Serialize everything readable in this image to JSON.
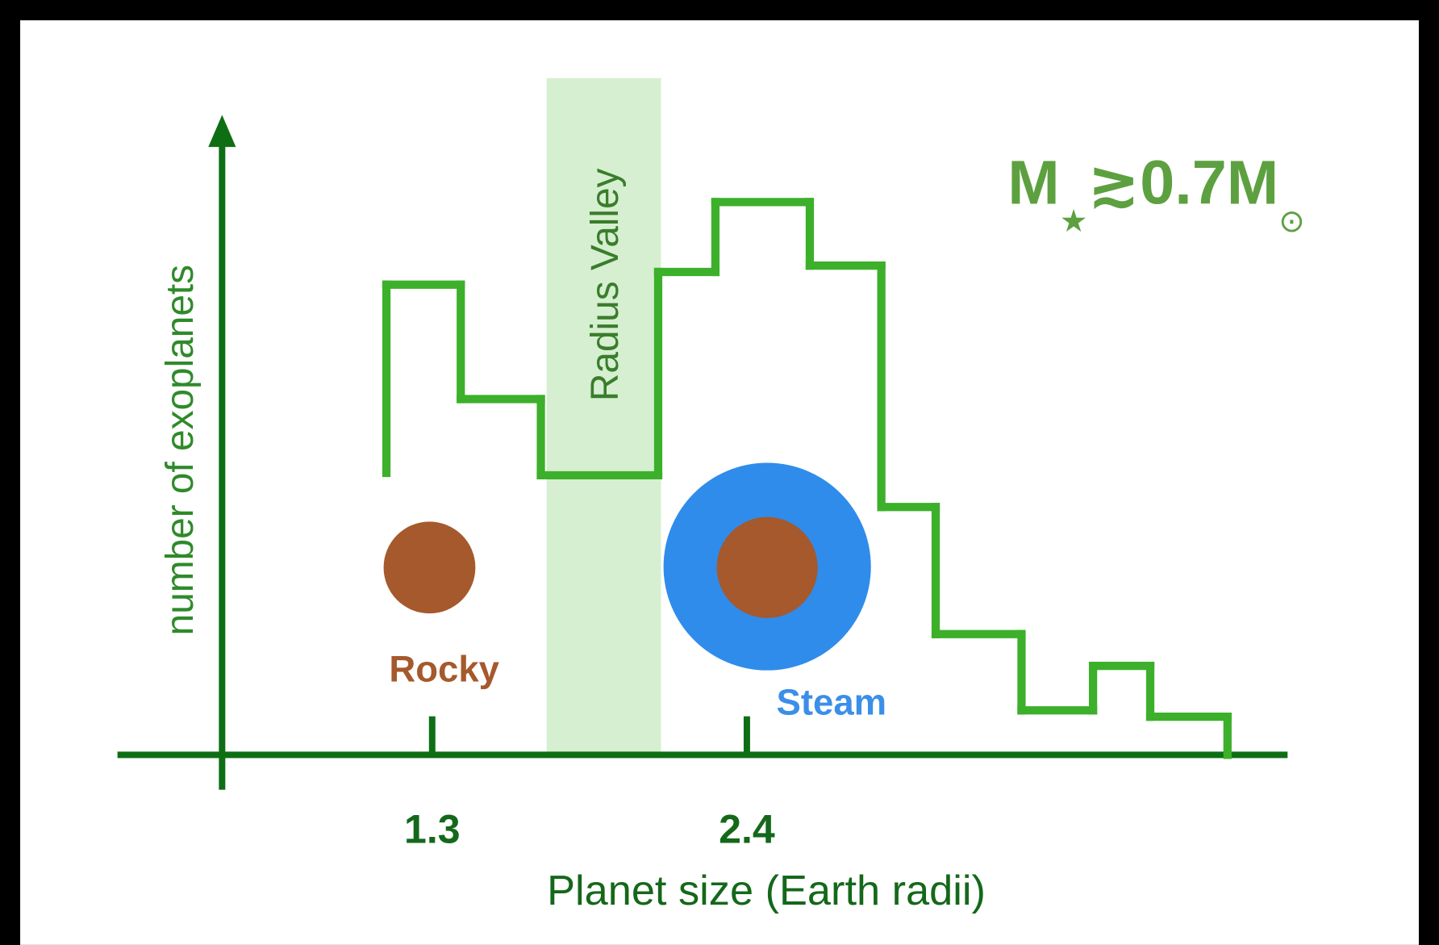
{
  "chart_data": {
    "type": "histogram",
    "x_label": "Planet size (Earth radii)",
    "y_label": "number of exoplanets",
    "bins": [
      1.14,
      1.4,
      1.68,
      2.09,
      2.29,
      2.62,
      2.87,
      3.06,
      3.36,
      3.61,
      3.81,
      4.08
    ],
    "values": [
      74,
      56,
      44,
      76,
      87,
      77,
      39,
      19,
      7,
      14,
      6
    ],
    "color": "#3cb02a",
    "xlim": [
      0.2,
      4.29
    ],
    "ylim": [
      0,
      100
    ],
    "xticks": [
      1.3,
      2.4
    ],
    "valley": {
      "label": "Radius Valley",
      "range": [
        1.7,
        2.1
      ],
      "color": "#d6efd0"
    },
    "condition": [
      "M",
      "★",
      "≳0.7M",
      "⊙"
    ],
    "planets": [
      {
        "label": "Rocky",
        "color": "#a5592c"
      },
      {
        "label": "Steam",
        "color": "#3b8fe8"
      }
    ]
  }
}
